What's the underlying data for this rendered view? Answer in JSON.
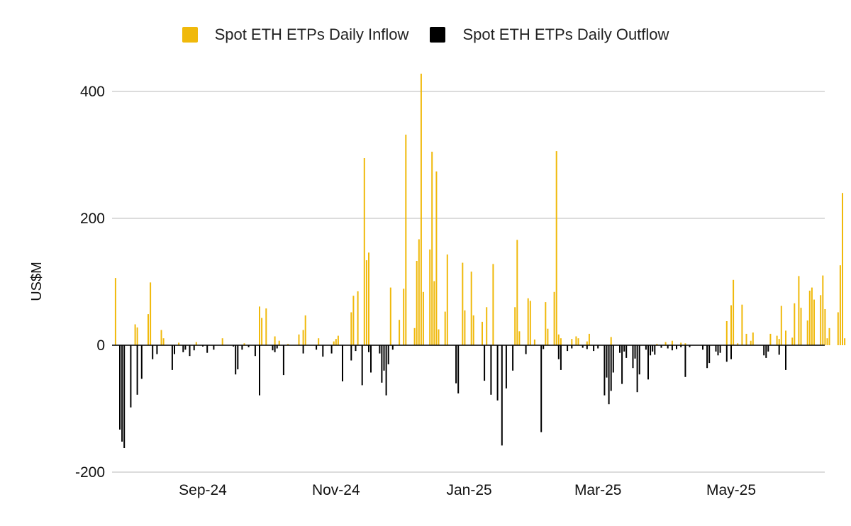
{
  "chart_data": {
    "type": "bar",
    "title": "",
    "xlabel": "",
    "ylabel": "US$M",
    "ylim": [
      -200,
      400
    ],
    "y_ticks": [
      400,
      200,
      0,
      -200
    ],
    "y_tick_labels": [
      "400",
      "200",
      "0",
      "-200"
    ],
    "grid": true,
    "legend_position": "top-center",
    "x_tick_labels": [
      "Sep-24",
      "Nov-24",
      "Jan-25",
      "Mar-25",
      "May-25"
    ],
    "x_tick_dates": [
      "2024-09-01",
      "2024-11-01",
      "2025-01-01",
      "2025-03-01",
      "2025-05-01"
    ],
    "series": [
      {
        "name": "Spot ETH ETPs Daily Inflow",
        "color": "#F0B90B",
        "points": [
          [
            "2024-07-23",
            106
          ],
          [
            "2024-08-01",
            33
          ],
          [
            "2024-08-02",
            28
          ],
          [
            "2024-08-07",
            49
          ],
          [
            "2024-08-08",
            99
          ],
          [
            "2024-08-13",
            24
          ],
          [
            "2024-08-14",
            11
          ],
          [
            "2024-08-21",
            4
          ],
          [
            "2024-08-29",
            5
          ],
          [
            "2024-09-10",
            11
          ],
          [
            "2024-09-20",
            3
          ],
          [
            "2024-09-27",
            61
          ],
          [
            "2024-09-28",
            43
          ],
          [
            "2024-09-30",
            58
          ],
          [
            "2024-10-04",
            14
          ],
          [
            "2024-10-06",
            7
          ],
          [
            "2024-10-10",
            2
          ],
          [
            "2024-10-15",
            17
          ],
          [
            "2024-10-17",
            24
          ],
          [
            "2024-10-18",
            47
          ],
          [
            "2024-10-24",
            11
          ],
          [
            "2024-10-31",
            6
          ],
          [
            "2024-11-01",
            10
          ],
          [
            "2024-11-02",
            15
          ],
          [
            "2024-11-08",
            52
          ],
          [
            "2024-11-09",
            78
          ],
          [
            "2024-11-11",
            85
          ],
          [
            "2024-11-14",
            295
          ],
          [
            "2024-11-15",
            134
          ],
          [
            "2024-11-16",
            146
          ],
          [
            "2024-11-26",
            91
          ],
          [
            "2024-11-30",
            40
          ],
          [
            "2024-12-02",
            89
          ],
          [
            "2024-12-03",
            332
          ],
          [
            "2024-12-07",
            27
          ],
          [
            "2024-12-08",
            133
          ],
          [
            "2024-12-09",
            167
          ],
          [
            "2024-12-10",
            428
          ],
          [
            "2024-12-11",
            84
          ],
          [
            "2024-12-14",
            151
          ],
          [
            "2024-12-15",
            305
          ],
          [
            "2024-12-16",
            101
          ],
          [
            "2024-12-17",
            274
          ],
          [
            "2024-12-18",
            25
          ],
          [
            "2024-12-21",
            53
          ],
          [
            "2024-12-22",
            143
          ],
          [
            "2024-12-29",
            130
          ],
          [
            "2024-12-30",
            55
          ],
          [
            "2025-01-02",
            116
          ],
          [
            "2025-01-03",
            47
          ],
          [
            "2025-01-07",
            37
          ],
          [
            "2025-01-09",
            60
          ],
          [
            "2025-01-12",
            128
          ],
          [
            "2025-01-22",
            60
          ],
          [
            "2025-01-23",
            166
          ],
          [
            "2025-01-24",
            22
          ],
          [
            "2025-01-28",
            74
          ],
          [
            "2025-01-29",
            70
          ],
          [
            "2025-01-31",
            9
          ],
          [
            "2025-02-05",
            68
          ],
          [
            "2025-02-06",
            26
          ],
          [
            "2025-02-09",
            84
          ],
          [
            "2025-02-10",
            306
          ],
          [
            "2025-02-11",
            17
          ],
          [
            "2025-02-12",
            11
          ],
          [
            "2025-02-17",
            10
          ],
          [
            "2025-02-19",
            14
          ],
          [
            "2025-02-20",
            11
          ],
          [
            "2025-02-24",
            6
          ],
          [
            "2025-02-25",
            18
          ],
          [
            "2025-03-07",
            13
          ],
          [
            "2025-03-28",
            2
          ],
          [
            "2025-04-01",
            5
          ],
          [
            "2025-04-04",
            7
          ],
          [
            "2025-04-08",
            4
          ],
          [
            "2025-04-10",
            3
          ],
          [
            "2025-04-29",
            38
          ],
          [
            "2025-05-01",
            63
          ],
          [
            "2025-05-02",
            103
          ],
          [
            "2025-05-04",
            3
          ],
          [
            "2025-05-06",
            64
          ],
          [
            "2025-05-08",
            18
          ],
          [
            "2025-05-10",
            7
          ],
          [
            "2025-05-11",
            20
          ],
          [
            "2025-05-19",
            18
          ],
          [
            "2025-05-22",
            15
          ],
          [
            "2025-05-23",
            10
          ],
          [
            "2025-05-24",
            62
          ],
          [
            "2025-05-26",
            23
          ],
          [
            "2025-05-29",
            12
          ],
          [
            "2025-05-30",
            66
          ],
          [
            "2025-06-01",
            109
          ],
          [
            "2025-06-02",
            59
          ],
          [
            "2025-06-05",
            39
          ],
          [
            "2025-06-06",
            86
          ],
          [
            "2025-06-07",
            91
          ],
          [
            "2025-06-08",
            72
          ],
          [
            "2025-06-11",
            79
          ],
          [
            "2025-06-12",
            110
          ],
          [
            "2025-06-13",
            57
          ],
          [
            "2025-06-14",
            11
          ],
          [
            "2025-06-15",
            27
          ],
          [
            "2025-06-19",
            52
          ],
          [
            "2025-06-20",
            126
          ],
          [
            "2025-06-21",
            240
          ],
          [
            "2025-06-22",
            11
          ]
        ]
      },
      {
        "name": "Spot ETH ETPs Daily Outflow",
        "color": "#000000",
        "points": [
          [
            "2024-07-25",
            -133
          ],
          [
            "2024-07-26",
            -152
          ],
          [
            "2024-07-27",
            -162
          ],
          [
            "2024-07-30",
            -98
          ],
          [
            "2024-08-02",
            -78
          ],
          [
            "2024-08-04",
            -53
          ],
          [
            "2024-08-09",
            -22
          ],
          [
            "2024-08-11",
            -14
          ],
          [
            "2024-08-18",
            -39
          ],
          [
            "2024-08-19",
            -14
          ],
          [
            "2024-08-23",
            -11
          ],
          [
            "2024-08-24",
            -7
          ],
          [
            "2024-08-26",
            -17
          ],
          [
            "2024-08-28",
            -8
          ],
          [
            "2024-09-01",
            -2
          ],
          [
            "2024-09-03",
            -12
          ],
          [
            "2024-09-06",
            -7
          ],
          [
            "2024-09-15",
            -2
          ],
          [
            "2024-09-16",
            -46
          ],
          [
            "2024-09-17",
            -38
          ],
          [
            "2024-09-19",
            -7
          ],
          [
            "2024-09-22",
            -3
          ],
          [
            "2024-09-25",
            -17
          ],
          [
            "2024-09-27",
            -79
          ],
          [
            "2024-10-03",
            -8
          ],
          [
            "2024-10-04",
            -11
          ],
          [
            "2024-10-05",
            -5
          ],
          [
            "2024-10-08",
            -47
          ],
          [
            "2024-10-17",
            -13
          ],
          [
            "2024-10-23",
            -7
          ],
          [
            "2024-10-26",
            -18
          ],
          [
            "2024-10-30",
            -13
          ],
          [
            "2024-11-04",
            -57
          ],
          [
            "2024-11-08",
            -24
          ],
          [
            "2024-11-10",
            -9
          ],
          [
            "2024-11-13",
            -63
          ],
          [
            "2024-11-16",
            -11
          ],
          [
            "2024-11-17",
            -43
          ],
          [
            "2024-11-21",
            -13
          ],
          [
            "2024-11-22",
            -59
          ],
          [
            "2024-11-23",
            -40
          ],
          [
            "2024-11-24",
            -79
          ],
          [
            "2024-11-25",
            -30
          ],
          [
            "2024-11-27",
            -7
          ],
          [
            "2024-12-26",
            -60
          ],
          [
            "2024-12-27",
            -76
          ],
          [
            "2025-01-08",
            -56
          ],
          [
            "2025-01-11",
            -78
          ],
          [
            "2025-01-14",
            -87
          ],
          [
            "2025-01-16",
            -158
          ],
          [
            "2025-01-18",
            -68
          ],
          [
            "2025-01-21",
            -40
          ],
          [
            "2025-01-27",
            -14
          ],
          [
            "2025-02-03",
            -137
          ],
          [
            "2025-02-04",
            -6
          ],
          [
            "2025-02-11",
            -22
          ],
          [
            "2025-02-12",
            -39
          ],
          [
            "2025-02-15",
            -9
          ],
          [
            "2025-02-17",
            -5
          ],
          [
            "2025-02-22",
            -4
          ],
          [
            "2025-02-24",
            -6
          ],
          [
            "2025-02-27",
            -9
          ],
          [
            "2025-03-01",
            -5
          ],
          [
            "2025-03-04",
            -79
          ],
          [
            "2025-03-05",
            -51
          ],
          [
            "2025-03-06",
            -93
          ],
          [
            "2025-03-07",
            -72
          ],
          [
            "2025-03-08",
            -43
          ],
          [
            "2025-03-11",
            -12
          ],
          [
            "2025-03-12",
            -61
          ],
          [
            "2025-03-13",
            -10
          ],
          [
            "2025-03-14",
            -20
          ],
          [
            "2025-03-17",
            -36
          ],
          [
            "2025-03-18",
            -21
          ],
          [
            "2025-03-19",
            -74
          ],
          [
            "2025-03-20",
            -46
          ],
          [
            "2025-03-23",
            -7
          ],
          [
            "2025-03-24",
            -54
          ],
          [
            "2025-03-25",
            -16
          ],
          [
            "2025-03-26",
            -10
          ],
          [
            "2025-03-27",
            -15
          ],
          [
            "2025-03-30",
            -4
          ],
          [
            "2025-04-02",
            -5
          ],
          [
            "2025-04-04",
            -8
          ],
          [
            "2025-04-06",
            -6
          ],
          [
            "2025-04-08",
            -3
          ],
          [
            "2025-04-10",
            -50
          ],
          [
            "2025-04-12",
            -3
          ],
          [
            "2025-04-18",
            -7
          ],
          [
            "2025-04-20",
            -36
          ],
          [
            "2025-04-21",
            -28
          ],
          [
            "2025-04-24",
            -10
          ],
          [
            "2025-04-25",
            -16
          ],
          [
            "2025-04-26",
            -12
          ],
          [
            "2025-04-29",
            -26
          ],
          [
            "2025-05-01",
            -22
          ],
          [
            "2025-05-16",
            -16
          ],
          [
            "2025-05-17",
            -20
          ],
          [
            "2025-05-18",
            -10
          ],
          [
            "2025-05-23",
            -15
          ],
          [
            "2025-05-26",
            -39
          ]
        ]
      }
    ]
  }
}
